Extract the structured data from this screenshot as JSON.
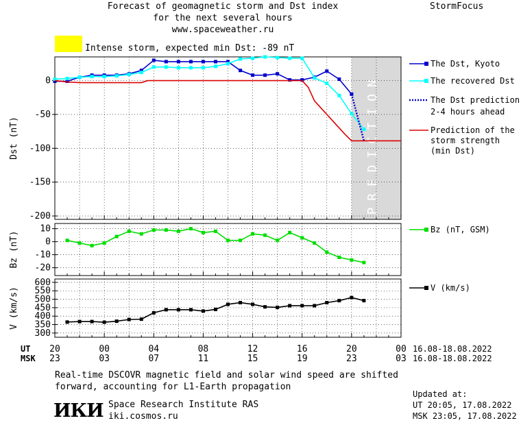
{
  "header": {
    "title_line1": "Forecast of geomagnetic storm and Dst index",
    "title_line2": "for the next several hours",
    "website": "www.spaceweather.ru",
    "brand": "StormFocus",
    "storm_status": "Intense storm, expected min Dst: -89 nT",
    "storm_color": "#ffff00"
  },
  "prediction_band_label": "PREDICTION",
  "legend": {
    "dst_kyoto": "The Dst, Kyoto",
    "dst_recovered": "The recovered Dst",
    "dst_prediction_1": "The Dst prediction",
    "dst_prediction_2": "2-4 hours ahead",
    "strength_1": "Prediction of the",
    "strength_2": "storm strength",
    "strength_3": "(min Dst)",
    "bz": "Bz (nT, GSM)",
    "v": "V (km/s)"
  },
  "time_axis": {
    "ut_label": "UT",
    "msk_label": "MSK",
    "ut_ticks": [
      "20",
      "00",
      "04",
      "08",
      "12",
      "16",
      "20",
      "00"
    ],
    "msk_ticks": [
      "23",
      "03",
      "07",
      "11",
      "15",
      "19",
      "23",
      "03"
    ],
    "date_range_ut": "16.08-18.08.2022",
    "date_range_msk": "16.08-18.08.2022"
  },
  "footer": {
    "note_line1": "Real-time DSCOVR magnetic field and solar wind speed are shifted",
    "note_line2": "forward, accounting for L1-Earth propagation",
    "logo": "ИКИ",
    "institute": "Space Research Institute RAS",
    "institute_site": "iki.cosmos.ru",
    "updated_label": "Updated at:",
    "updated_ut": "UT  20:05, 17.08.2022",
    "updated_msk": "MSK 23:05, 17.08.2022"
  },
  "chart_data": [
    {
      "type": "line",
      "ylabel": "Dst (nT)",
      "ylim": [
        -205,
        35
      ],
      "yticks": [
        0,
        -50,
        -100,
        -150,
        -200
      ],
      "xlim": [
        0,
        28
      ],
      "prediction_region": [
        24,
        28
      ],
      "series": [
        {
          "name": "The Dst, Kyoto",
          "color": "#0000cc",
          "marker": "square",
          "x": [
            0,
            1,
            2,
            3,
            4,
            5,
            6,
            7,
            8,
            9,
            10,
            11,
            12,
            13,
            14,
            15,
            16,
            17,
            18,
            19,
            20,
            21,
            22,
            23,
            24
          ],
          "y": [
            -1,
            -1,
            5,
            8,
            8,
            8,
            10,
            15,
            30,
            28,
            28,
            28,
            28,
            28,
            28,
            15,
            8,
            8,
            10,
            1,
            1,
            5,
            14,
            2,
            -20
          ]
        },
        {
          "name": "The recovered Dst",
          "color": "#00ffff",
          "marker": "square",
          "x": [
            0,
            1,
            2,
            3,
            4,
            5,
            6,
            7,
            8,
            9,
            10,
            11,
            12,
            13,
            14,
            15,
            16,
            17,
            18,
            19,
            20,
            21,
            22,
            23,
            24,
            25
          ],
          "y": [
            2,
            3,
            5,
            6,
            6,
            7,
            9,
            12,
            20,
            20,
            19,
            19,
            19,
            21,
            25,
            32,
            33,
            35,
            34,
            33,
            33,
            4,
            -4,
            -22,
            -49,
            -72
          ]
        },
        {
          "name": "The Dst prediction 2-4 hours ahead",
          "color": "#0000cc",
          "style": "dotted",
          "x": [
            24,
            25
          ],
          "y": [
            -20,
            -89
          ]
        },
        {
          "name": "Prediction of the storm strength (min Dst)",
          "color": "#dd0000",
          "x": [
            0,
            1,
            2,
            3,
            4,
            5,
            6,
            7,
            7.5,
            20,
            20.5,
            21,
            22,
            23,
            23.5,
            24,
            28
          ],
          "y": [
            0,
            -2,
            -3,
            -3,
            -3,
            -3,
            -3,
            -3,
            0,
            0,
            -10,
            -30,
            -50,
            -70,
            -80,
            -89,
            -89
          ]
        }
      ]
    },
    {
      "type": "line",
      "ylabel": "Bz (nT)",
      "ylim": [
        -26,
        14
      ],
      "yticks": [
        10,
        0,
        -10,
        -20
      ],
      "xlim": [
        0,
        28
      ],
      "series": [
        {
          "name": "Bz (nT, GSM)",
          "color": "#00dd00",
          "marker": "square",
          "x": [
            1,
            2,
            3,
            4,
            5,
            6,
            7,
            8,
            9,
            10,
            11,
            12,
            13,
            14,
            15,
            16,
            17,
            18,
            19,
            20,
            21,
            22,
            23,
            24,
            25
          ],
          "y": [
            1,
            -1,
            -3,
            -1,
            4,
            8,
            6,
            9,
            9,
            8,
            10,
            7,
            8,
            1,
            1,
            6,
            5,
            1,
            7,
            3,
            -1,
            -8,
            -12,
            -14,
            -16
          ]
        }
      ]
    },
    {
      "type": "line",
      "ylabel": "V (km/s)",
      "ylim": [
        275,
        620
      ],
      "yticks": [
        300,
        350,
        400,
        450,
        500,
        550,
        600
      ],
      "xlim": [
        0,
        28
      ],
      "series": [
        {
          "name": "V (km/s)",
          "color": "#000000",
          "marker": "square",
          "x": [
            1,
            2,
            3,
            4,
            5,
            6,
            7,
            8,
            9,
            10,
            11,
            12,
            13,
            14,
            15,
            16,
            17,
            18,
            19,
            20,
            21,
            22,
            23,
            24,
            25
          ],
          "y": [
            365,
            368,
            368,
            364,
            370,
            380,
            382,
            420,
            438,
            438,
            438,
            430,
            440,
            470,
            480,
            470,
            455,
            452,
            462,
            462,
            462,
            480,
            492,
            510,
            492
          ]
        }
      ]
    }
  ]
}
